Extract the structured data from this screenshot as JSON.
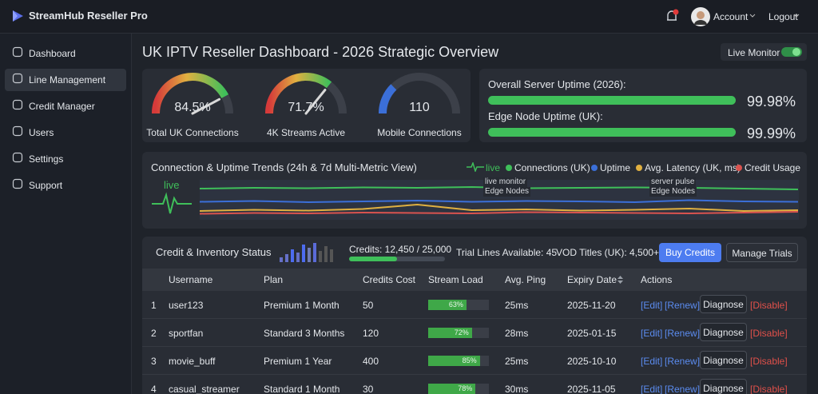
{
  "header": {
    "brand": "StreamHub Reseller Pro",
    "account": "Account",
    "logout": "Logout"
  },
  "sidebar": {
    "items": [
      "Dashboard",
      "Line Management",
      "Credit Manager",
      "Users",
      "Settings",
      "Support"
    ],
    "active": 1
  },
  "page": {
    "title": "UK IPTV Reseller Dashboard - 2026 Strategic Overview",
    "live_monitor": "Live Monitor"
  },
  "gauges": [
    {
      "label": "Total UK Connections",
      "value": 84.5,
      "value_label": "84.5%"
    },
    {
      "label": "4K Streams Active",
      "value": 71.7,
      "value_label": "71.7%"
    },
    {
      "label": "Mobile Connections",
      "value_label": "110"
    }
  ],
  "uptime": [
    {
      "label": "Overall Server Uptime (2026):",
      "value": 99.98,
      "value_label": "99.98%"
    },
    {
      "label": "Edge Node Uptime (UK):",
      "value": 99.99,
      "value_label": "99.99%"
    }
  ],
  "trend": {
    "title": "Connection & Uptime Trends (24h & 7d Multi-Metric View)",
    "live_legend": "live",
    "live_label": "live",
    "annotations": [
      {
        "text": "live monitor"
      },
      {
        "text": "Edge Nodes"
      },
      {
        "text": "server pulse"
      },
      {
        "text": "Edge Nodes"
      }
    ],
    "ylim": [
      0,
      100
    ],
    "series": [
      {
        "name": "Connections (UK)",
        "color": "#3fbf5a",
        "values": [
          78,
          80,
          79,
          81,
          80,
          82,
          79,
          80,
          81,
          80,
          78,
          76
        ]
      },
      {
        "name": "Uptime",
        "color": "#3b6fd8",
        "values": [
          45,
          47,
          44,
          46,
          48,
          45,
          47,
          46,
          44,
          49,
          46,
          45
        ]
      },
      {
        "name": "Avg. Latency (UK, ms)",
        "color": "#e0b040",
        "values": [
          22,
          25,
          23,
          27,
          38,
          24,
          26,
          23,
          25,
          28,
          22,
          24
        ]
      },
      {
        "name": "Credit Usage",
        "color": "#d9534f",
        "values": [
          15,
          17,
          16,
          18,
          17,
          16,
          19,
          18,
          17,
          16,
          18,
          20
        ]
      }
    ]
  },
  "inventory": {
    "title": "Credit & Inventory Status",
    "credits": {
      "text": "Credits: 12,450 / 25,000",
      "used": 12450,
      "total": 25000
    },
    "trial": "Trial Lines Available: 45",
    "vod": "VOD Titles (UK): 4,500+",
    "buy": "Buy Credits",
    "manage": "Manage Trials"
  },
  "table": {
    "columns": [
      "Username",
      "Plan",
      "Credits Cost",
      "Stream Load",
      "Avg. Ping",
      "Expiry Date",
      "Actions"
    ],
    "actions": [
      "[Edit]",
      "[Renew]",
      "Diagnose",
      "[Disable]"
    ],
    "rows": [
      {
        "index": 1,
        "username": "user123",
        "plan": "Premium 1 Month",
        "credits_cost": 50,
        "stream_load": 63,
        "stream_load_label": "63%",
        "avg_ping": "25ms",
        "expiry": "2025-11-20"
      },
      {
        "index": 2,
        "username": "sportfan",
        "plan": "Standard 3 Months",
        "credits_cost": 120,
        "stream_load": 72,
        "stream_load_label": "72%",
        "avg_ping": "28ms",
        "expiry": "2025-01-15"
      },
      {
        "index": 3,
        "username": "movie_buff",
        "plan": "Premium 1 Year",
        "credits_cost": 400,
        "stream_load": 85,
        "stream_load_label": "85%",
        "avg_ping": "25ms",
        "expiry": "2025-10-10"
      },
      {
        "index": 4,
        "username": "casual_streamer",
        "plan": "Standard 1 Month",
        "credits_cost": 30,
        "stream_load": 78,
        "stream_load_label": "78%",
        "avg_ping": "30ms",
        "expiry": "2025-11-05"
      }
    ]
  }
}
